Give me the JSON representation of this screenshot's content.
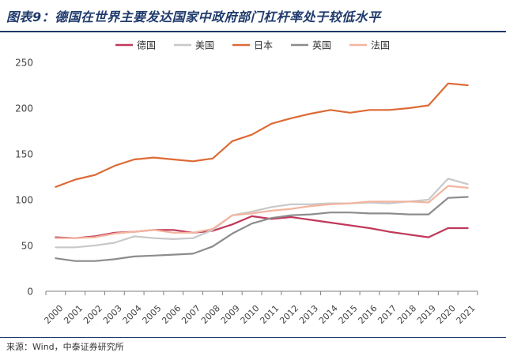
{
  "title": "图表9：德国在世界主要发达国家中政府部门杠杆率处于较低水平",
  "source": "来源：Wind，中泰证券研究所",
  "chart_data": {
    "type": "line",
    "title": "图表9：德国在世界主要发达国家中政府部门杠杆率处于较低水平",
    "xlabel": "",
    "ylabel": "",
    "ylim": [
      0,
      250
    ],
    "yticks": [
      0,
      50,
      100,
      150,
      200,
      250
    ],
    "grid": false,
    "legend": "top-center",
    "categories": [
      "2000",
      "2001",
      "2002",
      "2003",
      "2004",
      "2005",
      "2006",
      "2007",
      "2008",
      "2009",
      "2010",
      "2011",
      "2012",
      "2013",
      "2014",
      "2015",
      "2016",
      "2017",
      "2018",
      "2019",
      "2020",
      "2021"
    ],
    "series": [
      {
        "name": "德国",
        "color": "#c0395a",
        "values": [
          59,
          58,
          60,
          64,
          65,
          67,
          67,
          64,
          66,
          73,
          82,
          79,
          81,
          78,
          75,
          72,
          69,
          65,
          62,
          59,
          69,
          69
        ]
      },
      {
        "name": "美国",
        "color": "#c8c8c8",
        "values": [
          48,
          48,
          50,
          53,
          60,
          58,
          57,
          58,
          67,
          83,
          87,
          92,
          95,
          95,
          96,
          96,
          97,
          96,
          98,
          100,
          123,
          117
        ]
      },
      {
        "name": "日本",
        "color": "#dd6a35",
        "values": [
          114,
          122,
          127,
          137,
          144,
          146,
          144,
          142,
          145,
          164,
          171,
          183,
          189,
          194,
          198,
          195,
          198,
          198,
          200,
          203,
          227,
          225
        ]
      },
      {
        "name": "英国",
        "color": "#8c8c8c",
        "values": [
          36,
          33,
          33,
          35,
          38,
          39,
          40,
          41,
          49,
          63,
          74,
          80,
          83,
          84,
          86,
          86,
          85,
          85,
          84,
          84,
          102,
          103
        ]
      },
      {
        "name": "法国",
        "color": "#f2b5a0",
        "values": [
          58,
          58,
          59,
          63,
          65,
          67,
          64,
          64,
          68,
          83,
          85,
          88,
          90,
          93,
          95,
          96,
          98,
          98,
          98,
          97,
          115,
          113
        ]
      }
    ]
  }
}
